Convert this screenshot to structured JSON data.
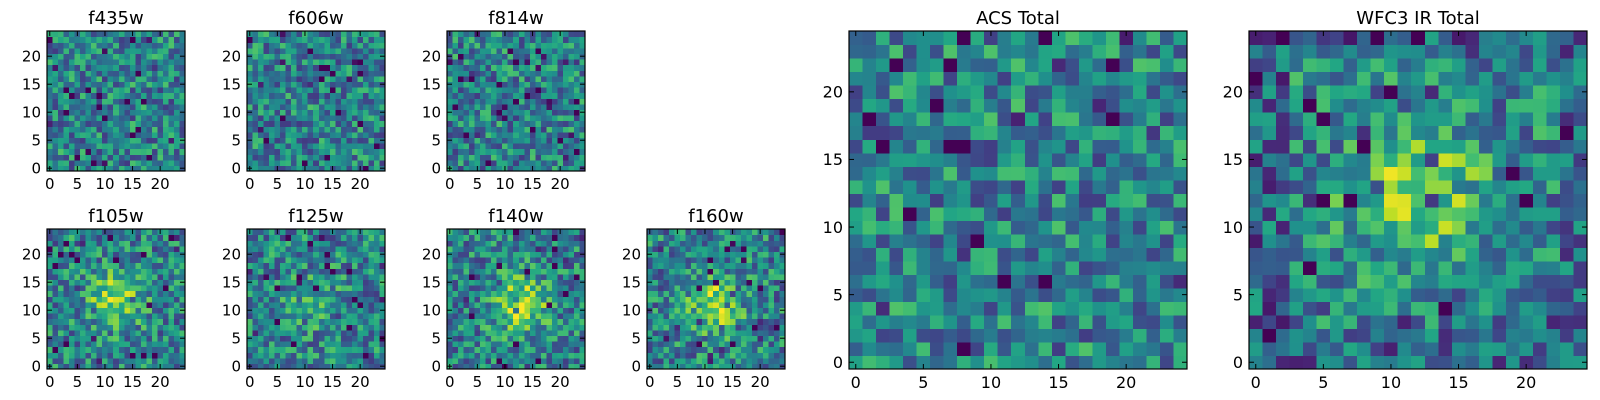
{
  "figure": {
    "panels": [
      {
        "id": "f435w",
        "title": "f435w"
      },
      {
        "id": "f606w",
        "title": "f606w"
      },
      {
        "id": "f814w",
        "title": "f814w"
      },
      {
        "id": "f105w",
        "title": "f105w"
      },
      {
        "id": "f125w",
        "title": "f125w"
      },
      {
        "id": "f140w",
        "title": "f140w"
      },
      {
        "id": "f160w",
        "title": "f160w"
      },
      {
        "id": "acs-total",
        "title": "ACS Total"
      },
      {
        "id": "wfc3-ir-total",
        "title": "WFC3 IR Total"
      }
    ]
  },
  "chart_data": [
    {
      "type": "heatmap",
      "title": "f435w",
      "image_size": [
        25,
        25
      ],
      "xlim": [
        -0.5,
        24.5
      ],
      "ylim": [
        -0.5,
        24.5
      ],
      "xticks": [
        0,
        5,
        10,
        15,
        20
      ],
      "yticks": [
        0,
        5,
        10,
        15,
        20
      ],
      "colormap": "viridis",
      "structure": "noise",
      "grid": false
    },
    {
      "type": "heatmap",
      "title": "f606w",
      "image_size": [
        25,
        25
      ],
      "xlim": [
        -0.5,
        24.5
      ],
      "ylim": [
        -0.5,
        24.5
      ],
      "xticks": [
        0,
        5,
        10,
        15,
        20
      ],
      "yticks": [
        0,
        5,
        10,
        15,
        20
      ],
      "colormap": "viridis",
      "structure": "noise",
      "grid": false
    },
    {
      "type": "heatmap",
      "title": "f814w",
      "image_size": [
        25,
        25
      ],
      "xlim": [
        -0.5,
        24.5
      ],
      "ylim": [
        -0.5,
        24.5
      ],
      "xticks": [
        0,
        5,
        10,
        15,
        20
      ],
      "yticks": [
        0,
        5,
        10,
        15,
        20
      ],
      "colormap": "viridis",
      "structure": "noise",
      "grid": false
    },
    {
      "type": "heatmap",
      "title": "f105w",
      "image_size": [
        25,
        25
      ],
      "xlim": [
        -0.5,
        24.5
      ],
      "ylim": [
        -0.5,
        24.5
      ],
      "xticks": [
        0,
        5,
        10,
        15,
        20
      ],
      "yticks": [
        0,
        5,
        10,
        15,
        20
      ],
      "colormap": "viridis",
      "structure": "central source",
      "source_center": [
        12,
        12
      ],
      "grid": false
    },
    {
      "type": "heatmap",
      "title": "f125w",
      "image_size": [
        25,
        25
      ],
      "xlim": [
        -0.5,
        24.5
      ],
      "ylim": [
        -0.5,
        24.5
      ],
      "xticks": [
        0,
        5,
        10,
        15,
        20
      ],
      "yticks": [
        0,
        5,
        10,
        15,
        20
      ],
      "colormap": "viridis",
      "structure": "noise with faint central source",
      "source_center": [
        12,
        12
      ],
      "grid": false
    },
    {
      "type": "heatmap",
      "title": "f140w",
      "image_size": [
        25,
        25
      ],
      "xlim": [
        -0.5,
        24.5
      ],
      "ylim": [
        -0.5,
        24.5
      ],
      "xticks": [
        0,
        5,
        10,
        15,
        20
      ],
      "yticks": [
        0,
        5,
        10,
        15,
        20
      ],
      "colormap": "viridis",
      "structure": "central source",
      "source_center": [
        13,
        11
      ],
      "grid": false
    },
    {
      "type": "heatmap",
      "title": "f160w",
      "image_size": [
        25,
        25
      ],
      "xlim": [
        -0.5,
        24.5
      ],
      "ylim": [
        -0.5,
        24.5
      ],
      "xticks": [
        0,
        5,
        10,
        15,
        20
      ],
      "yticks": [
        0,
        5,
        10,
        15,
        20
      ],
      "colormap": "viridis",
      "structure": "central source",
      "source_center": [
        12,
        11
      ],
      "grid": false
    },
    {
      "type": "heatmap",
      "title": "ACS Total",
      "image_size": [
        25,
        25
      ],
      "xlim": [
        -0.5,
        24.5
      ],
      "ylim": [
        -0.5,
        24.5
      ],
      "xticks": [
        0,
        5,
        10,
        15,
        20
      ],
      "yticks": [
        0,
        5,
        10,
        15,
        20
      ],
      "colormap": "viridis",
      "structure": "noise",
      "grid": false
    },
    {
      "type": "heatmap",
      "title": "WFC3 IR Total",
      "image_size": [
        25,
        25
      ],
      "xlim": [
        -0.5,
        24.5
      ],
      "ylim": [
        -0.5,
        24.5
      ],
      "xticks": [
        0,
        5,
        10,
        15,
        20
      ],
      "yticks": [
        0,
        5,
        10,
        15,
        20
      ],
      "colormap": "viridis",
      "structure": "central source",
      "source_center": [
        12,
        12
      ],
      "grid": false
    }
  ]
}
